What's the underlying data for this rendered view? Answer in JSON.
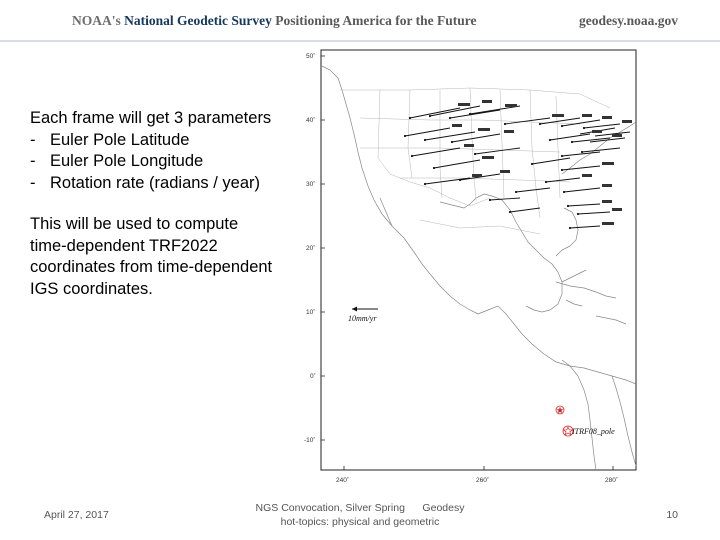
{
  "header": {
    "org": "NOAA's",
    "agency": "National Geodetic Survey",
    "tagline": "Positioning America for the Future",
    "site": "geodesy.noaa.gov"
  },
  "content": {
    "heading": "Each frame will get 3 parameters",
    "bullets": [
      "Euler Pole Latitude",
      "Euler Pole Longitude",
      "Rotation rate (radians / year)"
    ],
    "paragraph_lines": [
      "This will be used to compute",
      "time-dependent TRF2022",
      "coordinates from time-dependent",
      "IGS coordinates."
    ]
  },
  "map": {
    "lat_labels": [
      "50˚",
      "40˚",
      "30˚",
      "20˚",
      "10˚",
      "0˚",
      "-10˚"
    ],
    "lon_labels": [
      "240˚",
      "260˚",
      "280˚"
    ],
    "scale_label": "10mm/yr",
    "pole_label": "ITRF08_pole",
    "pole_color": "#d62828"
  },
  "footer": {
    "date": "April 27, 2017",
    "event_line1": "NGS Convocation, Silver Spring      Geodesy",
    "event_line2": "hot-topics: physical and geometric",
    "page": "10"
  }
}
